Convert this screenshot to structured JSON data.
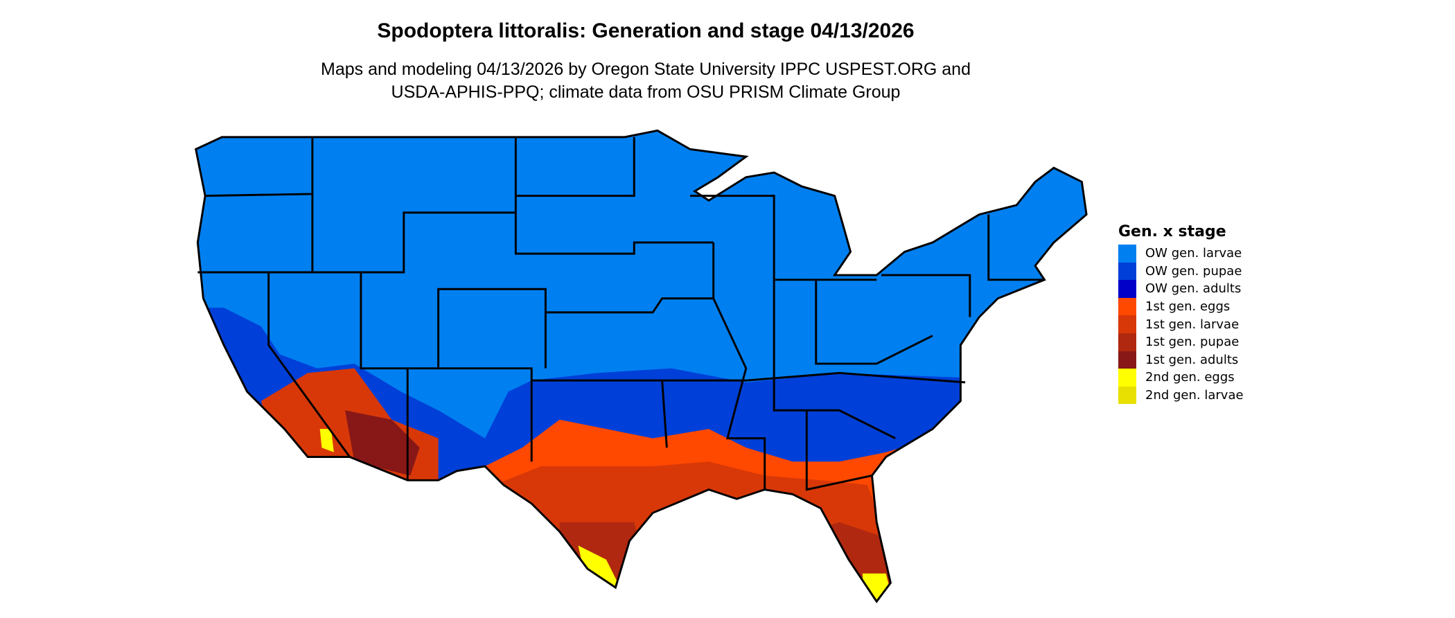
{
  "title": "Spodoptera littoralis: Generation and stage 04/13/2026",
  "subtitle_line1": "Maps and modeling 04/13/2026 by Oregon State University IPPC USPEST.ORG and",
  "subtitle_line2": "USDA-APHIS-PPQ; climate data from OSU PRISM Climate Group",
  "legend": {
    "title": "Gen. x stage",
    "items": [
      {
        "label": "OW gen. larvae",
        "color": "#0080F0"
      },
      {
        "label": "OW gen. pupae",
        "color": "#0040D8"
      },
      {
        "label": "OW gen. adults",
        "color": "#0000C8"
      },
      {
        "label": "1st gen. eggs",
        "color": "#FF4800"
      },
      {
        "label": "1st gen. larvae",
        "color": "#D83808"
      },
      {
        "label": "1st gen. pupae",
        "color": "#B02810"
      },
      {
        "label": "1st gen. adults",
        "color": "#881818"
      },
      {
        "label": "2nd gen. eggs",
        "color": "#FFFF00"
      },
      {
        "label": "2nd gen. larvae",
        "color": "#E8E000"
      }
    ]
  }
}
